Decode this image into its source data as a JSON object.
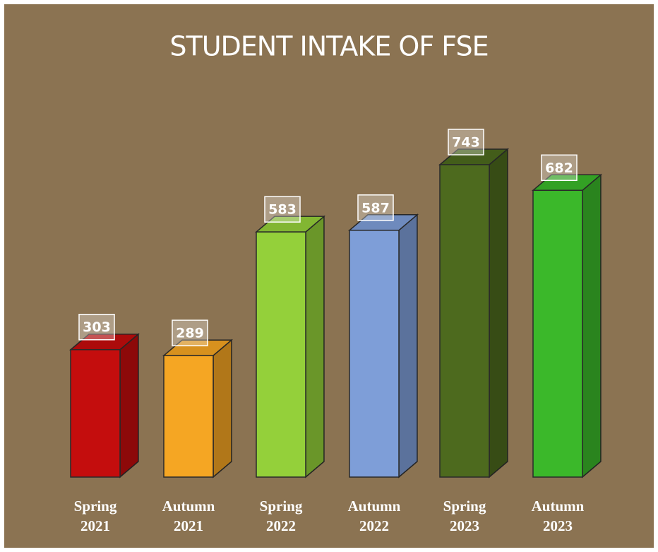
{
  "chart_data": {
    "type": "bar3d",
    "title": "STUDENT INTAKE OF FSE",
    "categories": [
      "Spring 2021",
      "Autumn 2021",
      "Spring 2022",
      "Autumn 2022",
      "Spring 2023",
      "Autumn 2023"
    ],
    "values": [
      303,
      289,
      583,
      587,
      743,
      682
    ],
    "colors": [
      "#c40d0d",
      "#f5a623",
      "#94d03a",
      "#7e9ed8",
      "#4d6a1e",
      "#3bb82a"
    ]
  }
}
